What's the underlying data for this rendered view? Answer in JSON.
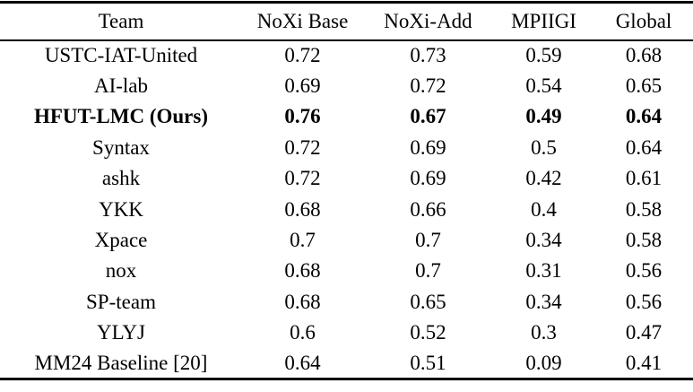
{
  "table": {
    "columns": [
      "Team",
      "NoXi Base",
      "NoXi-Add",
      "MPIIGI",
      "Global"
    ],
    "rows": [
      {
        "team": "USTC-IAT-United",
        "values": [
          "0.72",
          "0.73",
          "0.59",
          "0.68"
        ],
        "bold": false
      },
      {
        "team": "AI-lab",
        "values": [
          "0.69",
          "0.72",
          "0.54",
          "0.65"
        ],
        "bold": false
      },
      {
        "team": "HFUT-LMC (Ours)",
        "values": [
          "0.76",
          "0.67",
          "0.49",
          "0.64"
        ],
        "bold": true
      },
      {
        "team": "Syntax",
        "values": [
          "0.72",
          "0.69",
          "0.5",
          "0.64"
        ],
        "bold": false
      },
      {
        "team": "ashk",
        "values": [
          "0.72",
          "0.69",
          "0.42",
          "0.61"
        ],
        "bold": false
      },
      {
        "team": "YKK",
        "values": [
          "0.68",
          "0.66",
          "0.4",
          "0.58"
        ],
        "bold": false
      },
      {
        "team": "Xpace",
        "values": [
          "0.7",
          "0.7",
          "0.34",
          "0.58"
        ],
        "bold": false
      },
      {
        "team": "nox",
        "values": [
          "0.68",
          "0.7",
          "0.31",
          "0.56"
        ],
        "bold": false
      },
      {
        "team": "SP-team",
        "values": [
          "0.68",
          "0.65",
          "0.34",
          "0.56"
        ],
        "bold": false
      },
      {
        "team": "YLYJ",
        "values": [
          "0.6",
          "0.52",
          "0.3",
          "0.47"
        ],
        "bold": false
      },
      {
        "team": "MM24 Baseline [20]",
        "values": [
          "0.64",
          "0.51",
          "0.09",
          "0.41"
        ],
        "bold": false
      }
    ]
  },
  "chart_data": {
    "type": "table",
    "columns": [
      "Team",
      "NoXi Base",
      "NoXi-Add",
      "MPIIGI",
      "Global"
    ],
    "rows": [
      [
        "USTC-IAT-United",
        0.72,
        0.73,
        0.59,
        0.68
      ],
      [
        "AI-lab",
        0.69,
        0.72,
        0.54,
        0.65
      ],
      [
        "HFUT-LMC (Ours)",
        0.76,
        0.67,
        0.49,
        0.64
      ],
      [
        "Syntax",
        0.72,
        0.69,
        0.5,
        0.64
      ],
      [
        "ashk",
        0.72,
        0.69,
        0.42,
        0.61
      ],
      [
        "YKK",
        0.68,
        0.66,
        0.4,
        0.58
      ],
      [
        "Xpace",
        0.7,
        0.7,
        0.34,
        0.58
      ],
      [
        "nox",
        0.68,
        0.7,
        0.31,
        0.56
      ],
      [
        "SP-team",
        0.68,
        0.65,
        0.34,
        0.56
      ],
      [
        "YLYJ",
        0.6,
        0.52,
        0.3,
        0.47
      ],
      [
        "MM24 Baseline [20]",
        0.64,
        0.51,
        0.09,
        0.41
      ]
    ],
    "highlighted_row": "HFUT-LMC (Ours)"
  }
}
